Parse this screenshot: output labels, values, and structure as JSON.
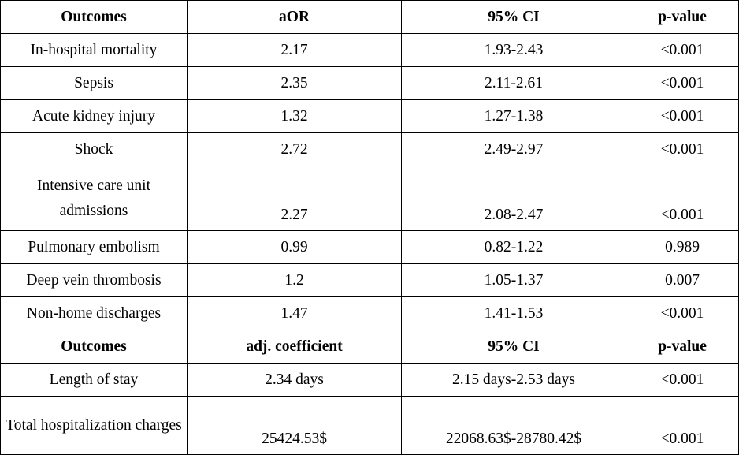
{
  "table1": {
    "headers": [
      "Outcomes",
      "aOR",
      "95% CI",
      "p-value"
    ],
    "rows": [
      [
        "In-hospital mortality",
        "2.17",
        "1.93-2.43",
        "<0.001"
      ],
      [
        "Sepsis",
        "2.35",
        "2.11-2.61",
        "<0.001"
      ],
      [
        "Acute kidney injury",
        "1.32",
        "1.27-1.38",
        "<0.001"
      ],
      [
        "Shock",
        "2.72",
        "2.49-2.97",
        "<0.001"
      ],
      [
        "Intensive care unit admissions",
        "2.27",
        "2.08-2.47",
        "<0.001"
      ],
      [
        "Pulmonary embolism",
        "0.99",
        "0.82-1.22",
        "0.989"
      ],
      [
        "Deep vein thrombosis",
        "1.2",
        "1.05-1.37",
        "0.007"
      ],
      [
        "Non-home discharges",
        "1.47",
        "1.41-1.53",
        "<0.001"
      ]
    ]
  },
  "table2": {
    "headers": [
      "Outcomes",
      "adj. coefficient",
      "95% CI",
      "p-value"
    ],
    "rows": [
      [
        "Length of stay",
        "2.34 days",
        "2.15 days-2.53 days",
        "<0.001"
      ],
      [
        "Total hospitalization charges",
        "25424.53$",
        "22068.63$-28780.42$",
        "<0.001"
      ]
    ]
  }
}
